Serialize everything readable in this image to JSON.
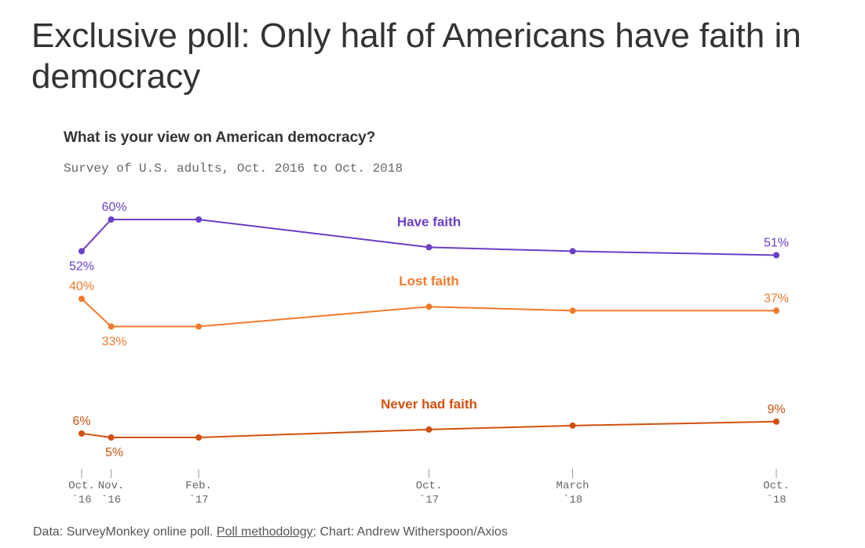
{
  "headline": "Exclusive poll: Only half of Americans have faith in democracy",
  "source": {
    "prefix": "Data: SurveyMonkey online poll. ",
    "link_text": "Poll methodology;",
    "suffix": " Chart: Andrew Witherspoon/Axios"
  },
  "chart_data": {
    "type": "line",
    "title": "What is your view on American democracy?",
    "subtitle": "Survey of U.S. adults, Oct. 2016 to Oct. 2018",
    "x": [
      "2016-10",
      "2016-11",
      "2017-02",
      "2017-10",
      "2018-03",
      "2018-10"
    ],
    "x_tick_labels": [
      [
        "Oct.",
        "`16"
      ],
      [
        "Nov.",
        "`16"
      ],
      [
        "Feb.",
        "`17"
      ],
      [
        "Oct.",
        "`17"
      ],
      [
        "March",
        "`18"
      ],
      [
        "Oct.",
        "`18"
      ]
    ],
    "ylim": [
      0,
      65
    ],
    "grid": false,
    "series": [
      {
        "name": "Have faith",
        "color": "#6a3ec6",
        "values": [
          52,
          60,
          60,
          53,
          52,
          51
        ],
        "labels": [
          {
            "index": 0,
            "text": "52%",
            "pos": "below"
          },
          {
            "index": 1,
            "text": "60%",
            "pos": "above"
          },
          {
            "index": 5,
            "text": "51%",
            "pos": "above"
          }
        ]
      },
      {
        "name": "Lost faith",
        "color": "#f07a2c",
        "values": [
          40,
          33,
          33,
          38,
          37,
          37
        ],
        "labels": [
          {
            "index": 0,
            "text": "40%",
            "pos": "above"
          },
          {
            "index": 1,
            "text": "33%",
            "pos": "below"
          },
          {
            "index": 5,
            "text": "37%",
            "pos": "above"
          }
        ]
      },
      {
        "name": "Never had faith",
        "color": "#d1500f",
        "values": [
          6,
          5,
          5,
          7,
          8,
          9
        ],
        "labels": [
          {
            "index": 0,
            "text": "6%",
            "pos": "above"
          },
          {
            "index": 1,
            "text": "5%",
            "pos": "below"
          },
          {
            "index": 5,
            "text": "9%",
            "pos": "above"
          }
        ]
      }
    ]
  }
}
